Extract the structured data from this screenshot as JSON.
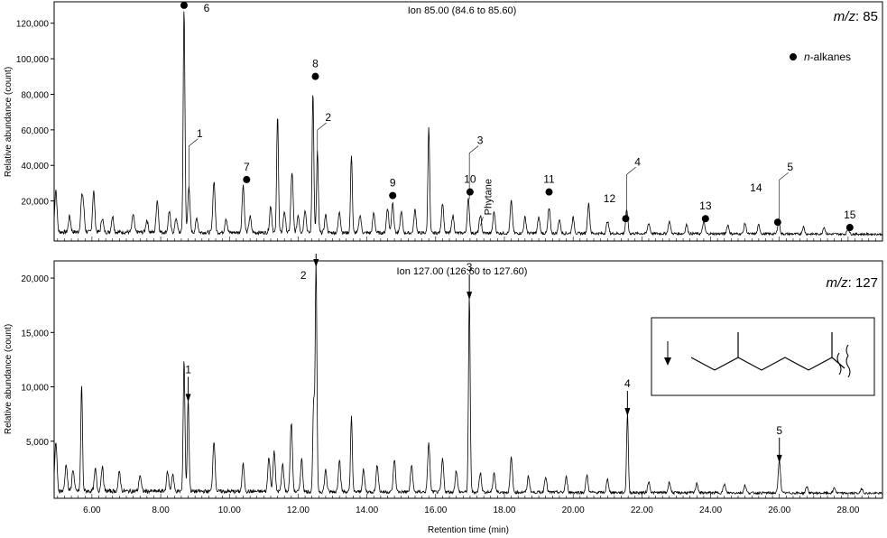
{
  "chart_data": [
    {
      "type": "line",
      "panel": "top",
      "title": "Ion 85.00 (84.6 to 85.60)",
      "corner_label_italic": "m/z",
      "corner_label_rest": ": 85",
      "legend": {
        "marker": "filled-circle",
        "label": "n-alkanes",
        "label_italic": "n",
        "label_rest": "-alkanes",
        "position": "top-right"
      },
      "ylabel": "Relative abundance (count)",
      "xlim": [
        4.9,
        29.0
      ],
      "ylim": [
        0,
        130000
      ],
      "yticks": [
        20000,
        40000,
        60000,
        80000,
        100000,
        120000
      ],
      "ytick_labels": [
        "20,000",
        "40,000",
        "60,000",
        "80,000",
        "100,000",
        "120,000"
      ],
      "peaks": [
        {
          "x": 4.95,
          "y": 24000
        },
        {
          "x": 5.35,
          "y": 9000
        },
        {
          "x": 5.7,
          "y": 16000
        },
        {
          "x": 5.75,
          "y": 13000
        },
        {
          "x": 6.05,
          "y": 23000
        },
        {
          "x": 6.3,
          "y": 8000
        },
        {
          "x": 6.6,
          "y": 9000
        },
        {
          "x": 7.2,
          "y": 10000
        },
        {
          "x": 7.6,
          "y": 7000
        },
        {
          "x": 7.9,
          "y": 18000
        },
        {
          "x": 8.25,
          "y": 12000
        },
        {
          "x": 8.45,
          "y": 8000
        },
        {
          "x": 8.68,
          "y": 127000
        },
        {
          "x": 8.82,
          "y": 25000
        },
        {
          "x": 9.05,
          "y": 8000
        },
        {
          "x": 9.55,
          "y": 29000
        },
        {
          "x": 9.9,
          "y": 8000
        },
        {
          "x": 10.4,
          "y": 27000
        },
        {
          "x": 10.6,
          "y": 9000
        },
        {
          "x": 11.2,
          "y": 15000
        },
        {
          "x": 11.4,
          "y": 67000
        },
        {
          "x": 11.6,
          "y": 12000
        },
        {
          "x": 11.82,
          "y": 34000
        },
        {
          "x": 12.0,
          "y": 10000
        },
        {
          "x": 12.2,
          "y": 13000
        },
        {
          "x": 12.43,
          "y": 80000
        },
        {
          "x": 12.56,
          "y": 46000
        },
        {
          "x": 12.8,
          "y": 10000
        },
        {
          "x": 13.2,
          "y": 12000
        },
        {
          "x": 13.55,
          "y": 44000
        },
        {
          "x": 13.8,
          "y": 10000
        },
        {
          "x": 14.2,
          "y": 11000
        },
        {
          "x": 14.6,
          "y": 14000
        },
        {
          "x": 14.75,
          "y": 17000
        },
        {
          "x": 15.0,
          "y": 12000
        },
        {
          "x": 15.4,
          "y": 13000
        },
        {
          "x": 15.8,
          "y": 60000
        },
        {
          "x": 16.2,
          "y": 17000
        },
        {
          "x": 16.5,
          "y": 10000
        },
        {
          "x": 16.95,
          "y": 19000
        },
        {
          "x": 17.3,
          "y": 10000
        },
        {
          "x": 17.7,
          "y": 12000
        },
        {
          "x": 18.2,
          "y": 18000
        },
        {
          "x": 18.6,
          "y": 9000
        },
        {
          "x": 19.0,
          "y": 9000
        },
        {
          "x": 19.3,
          "y": 14000
        },
        {
          "x": 19.6,
          "y": 8000
        },
        {
          "x": 20.0,
          "y": 9000
        },
        {
          "x": 20.45,
          "y": 17000
        },
        {
          "x": 21.0,
          "y": 7000
        },
        {
          "x": 21.56,
          "y": 13000
        },
        {
          "x": 22.2,
          "y": 6000
        },
        {
          "x": 22.8,
          "y": 7000
        },
        {
          "x": 23.3,
          "y": 5000
        },
        {
          "x": 23.8,
          "y": 7000
        },
        {
          "x": 24.5,
          "y": 5000
        },
        {
          "x": 25.0,
          "y": 6000
        },
        {
          "x": 25.4,
          "y": 5000
        },
        {
          "x": 25.98,
          "y": 7000
        },
        {
          "x": 26.7,
          "y": 4000
        },
        {
          "x": 27.3,
          "y": 4000
        },
        {
          "x": 28.0,
          "y": 3000
        }
      ],
      "annotations": [
        {
          "label": "1",
          "x": 8.82,
          "y": 25000,
          "kind": "number"
        },
        {
          "label": "2",
          "x": 12.56,
          "y": 46000,
          "kind": "number"
        },
        {
          "label": "3",
          "x": 16.98,
          "y": 21000,
          "kind": "number"
        },
        {
          "label": "4",
          "x": 21.56,
          "y": 9000,
          "kind": "number"
        },
        {
          "label": "5",
          "x": 26.0,
          "y": 6000,
          "kind": "number"
        },
        {
          "label": "6",
          "x": 8.68,
          "y": 127000,
          "kind": "n-alkane"
        },
        {
          "label": "7",
          "x": 10.5,
          "y": 29000,
          "kind": "n-alkane"
        },
        {
          "label": "8",
          "x": 12.5,
          "y": 87000,
          "kind": "n-alkane"
        },
        {
          "label": "9",
          "x": 14.75,
          "y": 20000,
          "kind": "n-alkane"
        },
        {
          "label": "10",
          "x": 17.0,
          "y": 22000,
          "kind": "n-alkane"
        },
        {
          "label": "Phytane",
          "x": 17.25,
          "y": 11000,
          "kind": "text"
        },
        {
          "label": "11",
          "x": 19.3,
          "y": 22000,
          "kind": "n-alkane"
        },
        {
          "label": "12",
          "x": 21.53,
          "y": 7000,
          "kind": "n-alkane"
        },
        {
          "label": "13",
          "x": 23.85,
          "y": 7000,
          "kind": "n-alkane"
        },
        {
          "label": "14",
          "x": 25.95,
          "y": 5000,
          "kind": "n-alkane"
        },
        {
          "label": "15",
          "x": 28.05,
          "y": 2000,
          "kind": "n-alkane"
        }
      ]
    },
    {
      "type": "line",
      "panel": "bottom",
      "title": "Ion 127.00 (126.60 to 127.60)",
      "corner_label_italic": "m/z",
      "corner_label_rest": ": 127",
      "ylabel": "Relative abundance (count)",
      "xlabel": "Retention time (min)",
      "xlim": [
        4.9,
        29.0
      ],
      "ylim": [
        0,
        21500
      ],
      "xticks": [
        6,
        8,
        10,
        12,
        14,
        16,
        18,
        20,
        22,
        24,
        26,
        28
      ],
      "xtick_labels": [
        "6.00",
        "8.00",
        "10.00",
        "12.00",
        "14.00",
        "16.00",
        "18.00",
        "20.00",
        "22.00",
        "24.00",
        "26.00",
        "28.00"
      ],
      "yticks": [
        5000,
        10000,
        15000,
        20000
      ],
      "ytick_labels": [
        "5,000",
        "10,000",
        "15,000",
        "20,000"
      ],
      "peaks": [
        {
          "x": 4.95,
          "y": 4500
        },
        {
          "x": 5.25,
          "y": 2500
        },
        {
          "x": 5.45,
          "y": 2000
        },
        {
          "x": 5.7,
          "y": 9800
        },
        {
          "x": 6.1,
          "y": 2000
        },
        {
          "x": 6.3,
          "y": 2200
        },
        {
          "x": 6.8,
          "y": 1800
        },
        {
          "x": 7.4,
          "y": 1500
        },
        {
          "x": 8.2,
          "y": 1800
        },
        {
          "x": 8.35,
          "y": 1600
        },
        {
          "x": 8.68,
          "y": 12200
        },
        {
          "x": 8.8,
          "y": 8600
        },
        {
          "x": 9.55,
          "y": 4700
        },
        {
          "x": 10.4,
          "y": 2500
        },
        {
          "x": 11.15,
          "y": 3200
        },
        {
          "x": 11.3,
          "y": 3800
        },
        {
          "x": 11.55,
          "y": 2500
        },
        {
          "x": 11.8,
          "y": 6300
        },
        {
          "x": 12.1,
          "y": 3000
        },
        {
          "x": 12.45,
          "y": 8200
        },
        {
          "x": 12.52,
          "y": 21000
        },
        {
          "x": 12.8,
          "y": 2000
        },
        {
          "x": 13.2,
          "y": 3000
        },
        {
          "x": 13.55,
          "y": 7000
        },
        {
          "x": 13.9,
          "y": 2000
        },
        {
          "x": 14.3,
          "y": 2500
        },
        {
          "x": 14.8,
          "y": 3000
        },
        {
          "x": 15.3,
          "y": 2500
        },
        {
          "x": 15.8,
          "y": 4500
        },
        {
          "x": 16.2,
          "y": 3000
        },
        {
          "x": 16.6,
          "y": 2000
        },
        {
          "x": 16.98,
          "y": 18000
        },
        {
          "x": 17.3,
          "y": 1800
        },
        {
          "x": 17.7,
          "y": 1800
        },
        {
          "x": 18.2,
          "y": 3200
        },
        {
          "x": 18.7,
          "y": 1500
        },
        {
          "x": 19.2,
          "y": 1500
        },
        {
          "x": 19.8,
          "y": 1400
        },
        {
          "x": 20.4,
          "y": 1600
        },
        {
          "x": 21.0,
          "y": 1200
        },
        {
          "x": 21.58,
          "y": 7300
        },
        {
          "x": 22.2,
          "y": 1000
        },
        {
          "x": 22.8,
          "y": 1000
        },
        {
          "x": 23.6,
          "y": 900
        },
        {
          "x": 24.4,
          "y": 800
        },
        {
          "x": 25.0,
          "y": 700
        },
        {
          "x": 26.0,
          "y": 3000
        },
        {
          "x": 26.8,
          "y": 600
        },
        {
          "x": 27.6,
          "y": 500
        },
        {
          "x": 28.4,
          "y": 400
        }
      ],
      "annotations": [
        {
          "label": "1",
          "x": 8.8,
          "y": 8600
        },
        {
          "label": "2",
          "x": 12.52,
          "y": 21000
        },
        {
          "label": "3",
          "x": 16.98,
          "y": 18000
        },
        {
          "label": "4",
          "x": 21.58,
          "y": 7300
        },
        {
          "label": "5",
          "x": 26.0,
          "y": 3000
        }
      ],
      "structure_inset": {
        "description": "arrow indicating m/z 127 fragment on branched isoprenoid chain"
      }
    }
  ]
}
